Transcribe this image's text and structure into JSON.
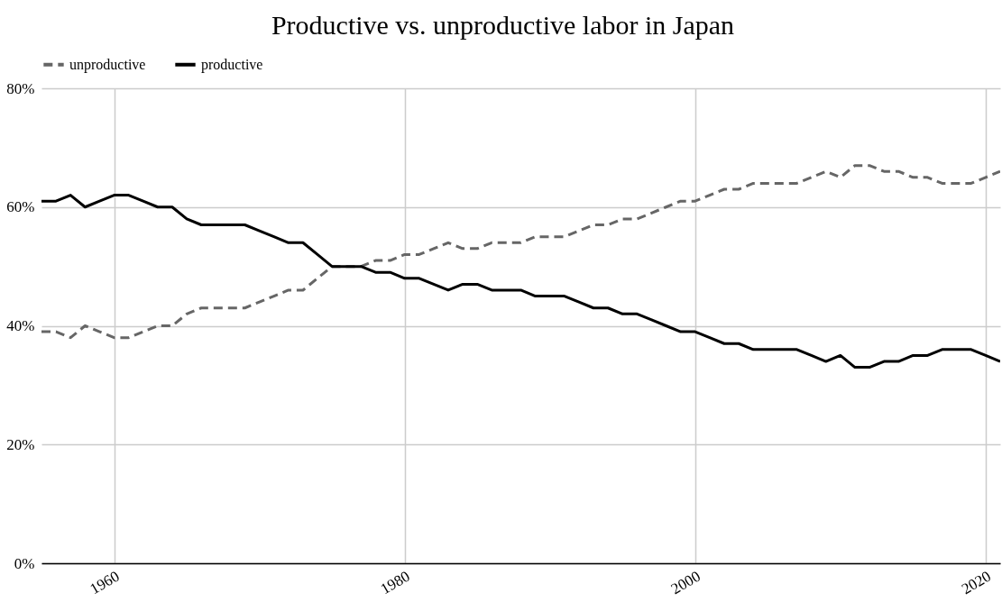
{
  "chart_data": {
    "type": "line",
    "title": "Productive vs. unproductive labor in Japan",
    "x": [
      1955,
      1956,
      1957,
      1958,
      1959,
      1960,
      1961,
      1962,
      1963,
      1964,
      1965,
      1966,
      1967,
      1968,
      1969,
      1970,
      1971,
      1972,
      1973,
      1974,
      1975,
      1976,
      1977,
      1978,
      1979,
      1980,
      1981,
      1982,
      1983,
      1984,
      1985,
      1986,
      1987,
      1988,
      1989,
      1990,
      1991,
      1992,
      1993,
      1994,
      1995,
      1996,
      1997,
      1998,
      1999,
      2000,
      2001,
      2002,
      2003,
      2004,
      2005,
      2006,
      2007,
      2008,
      2009,
      2010,
      2011,
      2012,
      2013,
      2014,
      2015,
      2016,
      2017,
      2018,
      2019,
      2020,
      2021
    ],
    "series": [
      {
        "name": "unproductive",
        "color": "#666666",
        "line_style": "dashed",
        "values": [
          39,
          39,
          38,
          40,
          39,
          38,
          38,
          39,
          40,
          40,
          42,
          43,
          43,
          43,
          43,
          44,
          45,
          46,
          46,
          48,
          50,
          50,
          50,
          51,
          51,
          52,
          52,
          53,
          54,
          53,
          53,
          54,
          54,
          54,
          55,
          55,
          55,
          56,
          57,
          57,
          58,
          58,
          59,
          60,
          61,
          61,
          62,
          63,
          63,
          64,
          64,
          64,
          64,
          65,
          66,
          65,
          67,
          67,
          66,
          66,
          65,
          65,
          64,
          64,
          64,
          65,
          66
        ]
      },
      {
        "name": "productive",
        "color": "#000000",
        "line_style": "solid",
        "values": [
          61,
          61,
          62,
          60,
          61,
          62,
          62,
          61,
          60,
          60,
          58,
          57,
          57,
          57,
          57,
          56,
          55,
          54,
          54,
          52,
          50,
          50,
          50,
          49,
          49,
          48,
          48,
          47,
          46,
          47,
          47,
          46,
          46,
          46,
          45,
          45,
          45,
          44,
          43,
          43,
          42,
          42,
          41,
          40,
          39,
          39,
          38,
          37,
          37,
          36,
          36,
          36,
          36,
          35,
          34,
          35,
          33,
          33,
          34,
          34,
          35,
          35,
          36,
          36,
          36,
          35,
          34
        ]
      }
    ],
    "xlim": [
      1955,
      2021
    ],
    "xticks": [
      1960,
      1980,
      2000,
      2020
    ],
    "ylim": [
      0,
      80
    ],
    "yticks": [
      {
        "value": 0,
        "label": "0%"
      },
      {
        "value": 20,
        "label": "20%"
      },
      {
        "value": 40,
        "label": "40%"
      },
      {
        "value": 60,
        "label": "60%"
      },
      {
        "value": 80,
        "label": "80%"
      }
    ],
    "grid": true,
    "legend": "top"
  }
}
